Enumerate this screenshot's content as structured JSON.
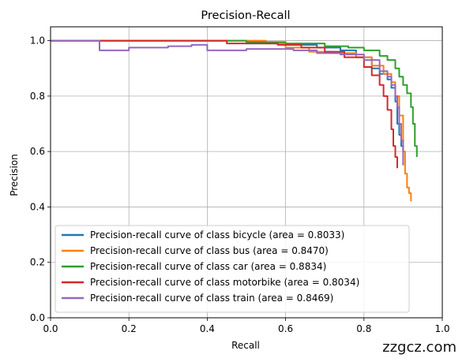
{
  "chart_data": {
    "type": "line",
    "title": "Precision-Recall",
    "xlabel": "Recall",
    "ylabel": "Precision",
    "xlim": [
      0,
      1
    ],
    "ylim": [
      0,
      1.05
    ],
    "xticks": [
      "0.0",
      "0.2",
      "0.4",
      "0.6",
      "0.8",
      "1.0"
    ],
    "yticks": [
      "0.0",
      "0.2",
      "0.4",
      "0.6",
      "0.8",
      "1.0"
    ],
    "grid": true,
    "legend_position": "bottom-left",
    "series": [
      {
        "name": "Precision-recall curve of class bicycle (area = 0.8033)",
        "color": "#1f77b4",
        "points": [
          [
            0.0,
            1.0
          ],
          [
            0.35,
            1.0
          ],
          [
            0.5,
            0.99
          ],
          [
            0.6,
            0.985
          ],
          [
            0.68,
            0.975
          ],
          [
            0.74,
            0.965
          ],
          [
            0.78,
            0.94
          ],
          [
            0.82,
            0.9
          ],
          [
            0.84,
            0.88
          ],
          [
            0.86,
            0.86
          ],
          [
            0.87,
            0.83
          ],
          [
            0.88,
            0.78
          ],
          [
            0.885,
            0.7
          ],
          [
            0.89,
            0.66
          ],
          [
            0.895,
            0.62
          ],
          [
            0.9,
            0.6
          ]
        ]
      },
      {
        "name": "Precision-recall curve of class bus (area = 0.8470)",
        "color": "#ff7f0e",
        "points": [
          [
            0.0,
            1.0
          ],
          [
            0.48,
            1.0
          ],
          [
            0.55,
            0.99
          ],
          [
            0.6,
            0.975
          ],
          [
            0.66,
            0.96
          ],
          [
            0.72,
            0.955
          ],
          [
            0.78,
            0.94
          ],
          [
            0.82,
            0.91
          ],
          [
            0.85,
            0.88
          ],
          [
            0.87,
            0.85
          ],
          [
            0.88,
            0.8
          ],
          [
            0.89,
            0.73
          ],
          [
            0.9,
            0.6
          ],
          [
            0.905,
            0.52
          ],
          [
            0.91,
            0.47
          ],
          [
            0.915,
            0.45
          ],
          [
            0.92,
            0.42
          ]
        ]
      },
      {
        "name": "Precision-recall curve of class car (area = 0.8834)",
        "color": "#2ca02c",
        "points": [
          [
            0.0,
            1.0
          ],
          [
            0.3,
            1.0
          ],
          [
            0.5,
            0.995
          ],
          [
            0.6,
            0.99
          ],
          [
            0.7,
            0.98
          ],
          [
            0.76,
            0.975
          ],
          [
            0.8,
            0.965
          ],
          [
            0.84,
            0.945
          ],
          [
            0.86,
            0.93
          ],
          [
            0.88,
            0.9
          ],
          [
            0.89,
            0.87
          ],
          [
            0.9,
            0.84
          ],
          [
            0.91,
            0.81
          ],
          [
            0.92,
            0.76
          ],
          [
            0.925,
            0.7
          ],
          [
            0.93,
            0.62
          ],
          [
            0.935,
            0.58
          ]
        ]
      },
      {
        "name": "Precision-recall curve of class motorbike (area = 0.8034)",
        "color": "#d62728",
        "points": [
          [
            0.0,
            1.0
          ],
          [
            0.3,
            1.0
          ],
          [
            0.45,
            0.99
          ],
          [
            0.58,
            0.985
          ],
          [
            0.64,
            0.975
          ],
          [
            0.7,
            0.96
          ],
          [
            0.75,
            0.94
          ],
          [
            0.8,
            0.905
          ],
          [
            0.82,
            0.875
          ],
          [
            0.84,
            0.84
          ],
          [
            0.85,
            0.8
          ],
          [
            0.86,
            0.75
          ],
          [
            0.87,
            0.68
          ],
          [
            0.875,
            0.62
          ],
          [
            0.88,
            0.58
          ],
          [
            0.885,
            0.54
          ]
        ]
      },
      {
        "name": "Precision-recall curve of class train (area = 0.8469)",
        "color": "#9467bd",
        "points": [
          [
            0.0,
            1.0
          ],
          [
            0.12,
            1.0
          ],
          [
            0.125,
            0.965
          ],
          [
            0.2,
            0.975
          ],
          [
            0.3,
            0.98
          ],
          [
            0.36,
            0.985
          ],
          [
            0.4,
            0.965
          ],
          [
            0.5,
            0.97
          ],
          [
            0.62,
            0.965
          ],
          [
            0.68,
            0.955
          ],
          [
            0.74,
            0.95
          ],
          [
            0.8,
            0.93
          ],
          [
            0.84,
            0.89
          ],
          [
            0.86,
            0.87
          ],
          [
            0.87,
            0.84
          ],
          [
            0.88,
            0.8
          ],
          [
            0.885,
            0.76
          ],
          [
            0.89,
            0.7
          ],
          [
            0.895,
            0.64
          ],
          [
            0.9,
            0.55
          ]
        ]
      }
    ]
  },
  "watermark": "zzgcz.com"
}
